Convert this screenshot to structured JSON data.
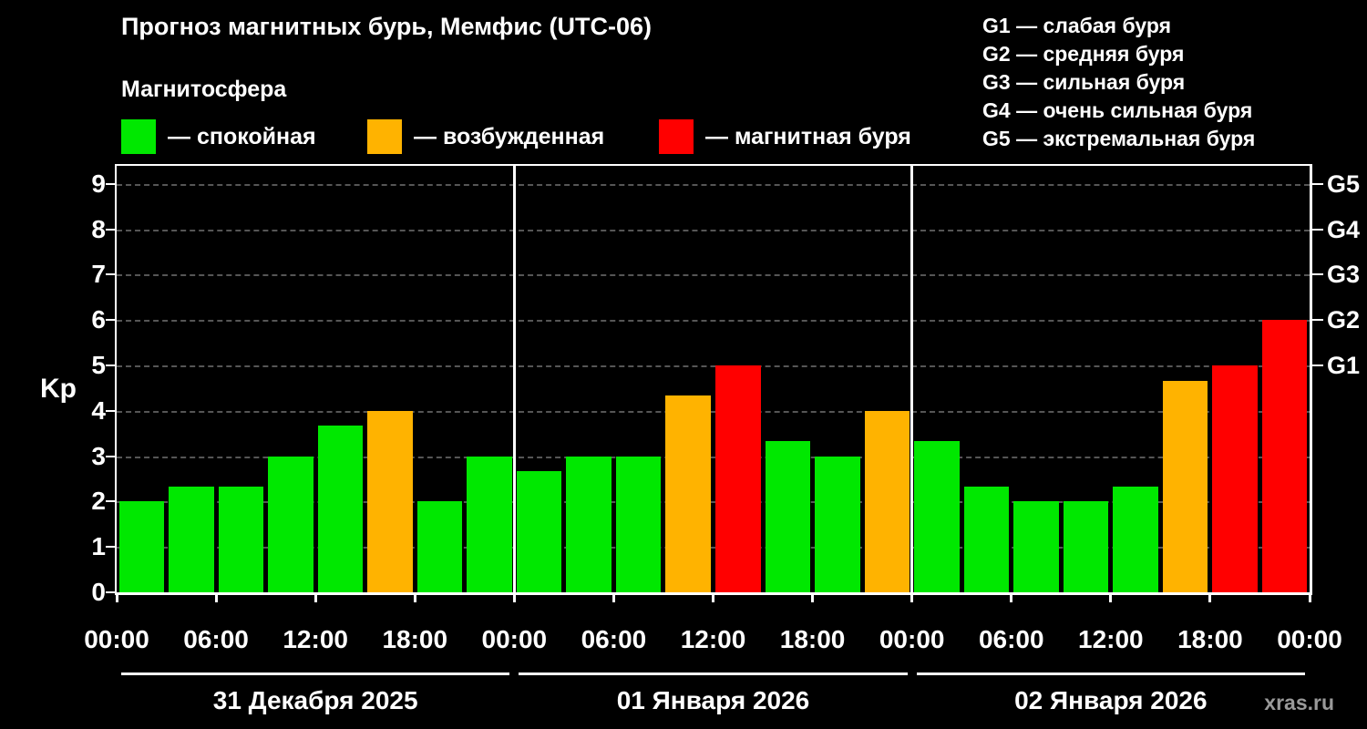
{
  "header": {
    "title": "Прогноз магнитных бурь, Мемфис (UTC-06)",
    "subtitle": "Магнитосфера"
  },
  "legend": {
    "items": [
      {
        "name": "quiet",
        "label": "— спокойная",
        "color": "#00e800"
      },
      {
        "name": "excited",
        "label": "— возбужденная",
        "color": "#ffb300"
      },
      {
        "name": "storm",
        "label": "— магнитная буря",
        "color": "#ff0000"
      }
    ]
  },
  "g_legend": {
    "items": [
      "G1 — слабая буря",
      "G2 — средняя буря",
      "G3 — сильная буря",
      "G4 — очень сильная буря",
      "G5 — экстремальная буря"
    ]
  },
  "watermark": "xras.ru",
  "chart_data": {
    "type": "bar",
    "title": "Прогноз магнитных бурь, Мемфис (UTC-06)",
    "ylabel": "Kp",
    "ylim": [
      0,
      9.4
    ],
    "yticks": [
      0,
      1,
      2,
      3,
      4,
      5,
      6,
      7,
      8,
      9
    ],
    "grid": "dashed horizontal line at each integer Kp value",
    "bar_interval_hours": 3,
    "x_tick_labels": [
      "00:00",
      "06:00",
      "12:00",
      "18:00"
    ],
    "right_axis": [
      {
        "label": "G1",
        "kp": 5
      },
      {
        "label": "G2",
        "kp": 6
      },
      {
        "label": "G3",
        "kp": 7
      },
      {
        "label": "G4",
        "kp": 8
      },
      {
        "label": "G5",
        "kp": 9
      }
    ],
    "colors": {
      "quiet": "#00e800",
      "excited": "#ffb300",
      "storm": "#ff0000"
    },
    "days": [
      {
        "date": "31 Декабря 2025",
        "values": [
          2.0,
          2.33,
          2.33,
          3.0,
          3.67,
          4.0,
          2.0,
          3.0
        ],
        "levels": [
          "quiet",
          "quiet",
          "quiet",
          "quiet",
          "quiet",
          "excited",
          "quiet",
          "quiet"
        ]
      },
      {
        "date": "01 Января 2026",
        "values": [
          2.67,
          3.0,
          3.0,
          4.33,
          5.0,
          3.33,
          3.0,
          4.0
        ],
        "levels": [
          "quiet",
          "quiet",
          "quiet",
          "excited",
          "storm",
          "quiet",
          "quiet",
          "excited"
        ]
      },
      {
        "date": "02 Января 2026",
        "values": [
          3.33,
          2.33,
          2.0,
          2.0,
          2.33,
          4.67,
          5.0,
          6.0
        ],
        "levels": [
          "quiet",
          "quiet",
          "quiet",
          "quiet",
          "quiet",
          "excited",
          "storm",
          "storm"
        ]
      }
    ]
  }
}
